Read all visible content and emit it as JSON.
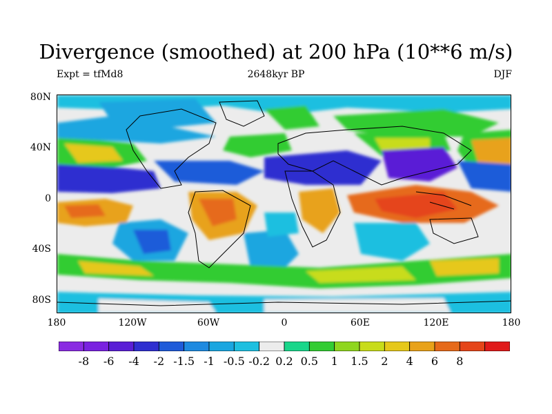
{
  "title": "Divergence (smoothed) at 200 hPa (10**6 m/s)",
  "subtitle_left": "Expt = tfMd8",
  "subtitle_center": "2648kyr BP",
  "subtitle_right": "DJF",
  "y_ticks": [
    "80N",
    "40N",
    "0",
    "40S",
    "80S"
  ],
  "x_ticks": [
    "180",
    "120W",
    "60W",
    "0",
    "60E",
    "120E",
    "180"
  ],
  "colorbar": {
    "colors": [
      "#8a2be2",
      "#7a22e0",
      "#5a1fd6",
      "#2f2fd0",
      "#1f5bd9",
      "#1e8ae0",
      "#1aa6e0",
      "#1ebfe0",
      "#ececec",
      "#19d68a",
      "#33cc33",
      "#8fd61f",
      "#c8dc1a",
      "#e6c81a",
      "#e8a21a",
      "#e66a1a",
      "#e5451a",
      "#e01a1a"
    ],
    "labels": [
      "-8",
      "-6",
      "-4",
      "-2",
      "-1.5",
      "-1",
      "-0.5",
      "-0.2",
      "0.2",
      "0.5",
      "1",
      "1.5",
      "2",
      "4",
      "6",
      "8"
    ]
  }
}
